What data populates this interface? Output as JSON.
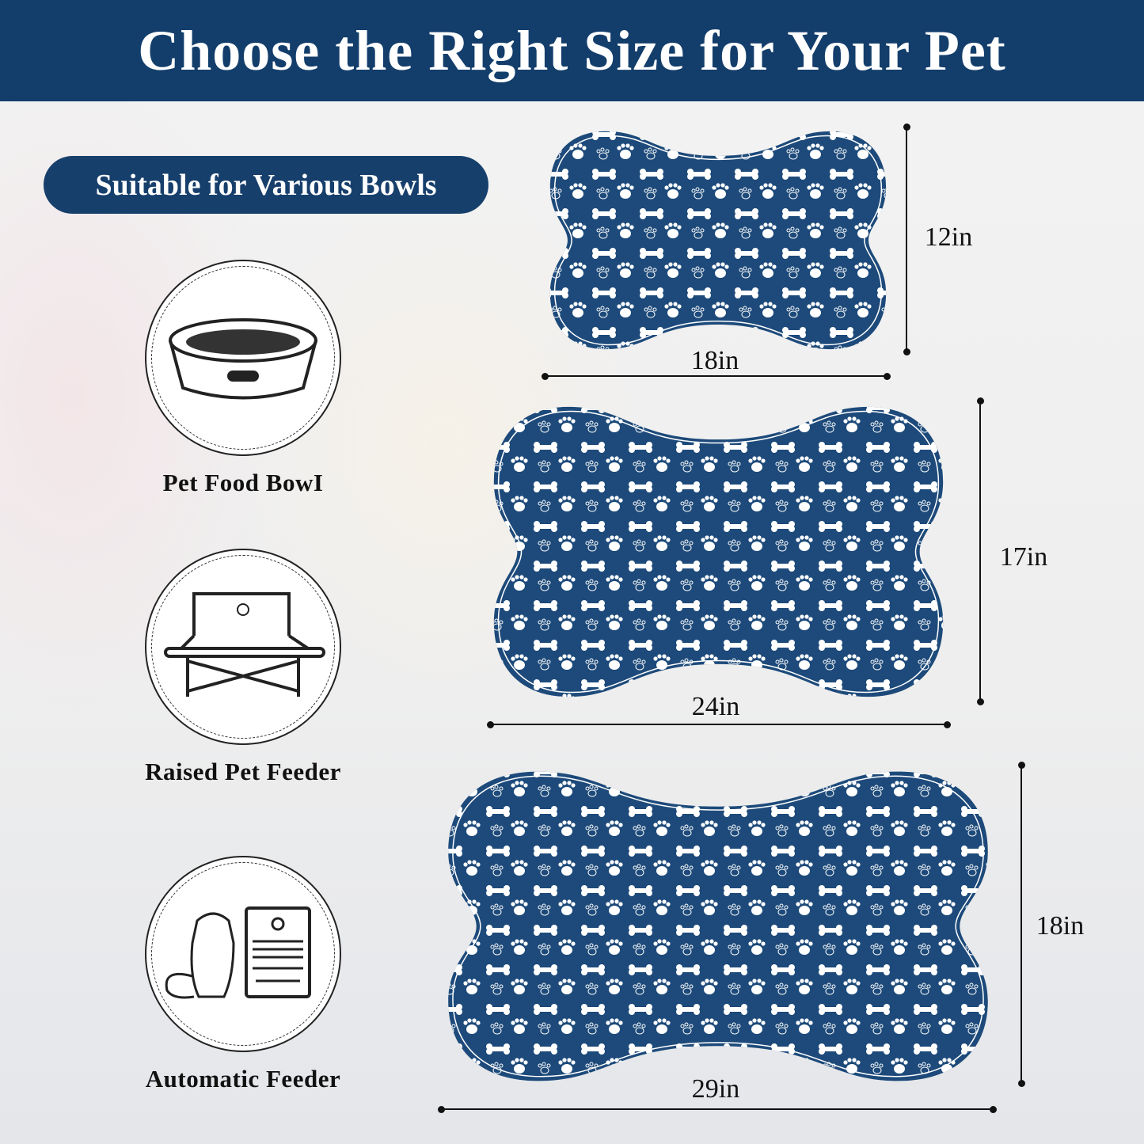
{
  "header": {
    "title": "Choose the Right Size for Your Pet"
  },
  "badge": {
    "label": "Suitable for Various Bowls"
  },
  "bowl_types": [
    {
      "label": "Pet Food BowI",
      "icon": "pet-food-bowl-icon"
    },
    {
      "label": "Raised Pet Feeder",
      "icon": "raised-feeder-icon"
    },
    {
      "label": "Automatic Feeder",
      "icon": "automatic-feeder-icon"
    }
  ],
  "sizes": [
    {
      "width": "18in",
      "height": "12in"
    },
    {
      "width": "24in",
      "height": "17in"
    },
    {
      "width": "29in",
      "height": "18in"
    }
  ],
  "colors": {
    "navy": "#133e6b",
    "mat": "#1d4a7a"
  }
}
